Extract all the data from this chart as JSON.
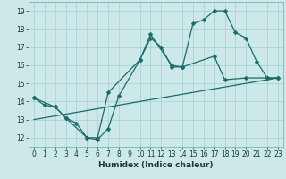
{
  "xlabel": "Humidex (Indice chaleur)",
  "background_color": "#cce8e8",
  "grid_color": "#aad4d4",
  "line_color": "#1a6b6b",
  "xlim": [
    -0.5,
    23.5
  ],
  "ylim": [
    11.5,
    19.5
  ],
  "yticks": [
    12,
    13,
    14,
    15,
    16,
    17,
    18,
    19
  ],
  "xticks": [
    0,
    1,
    2,
    3,
    4,
    5,
    6,
    7,
    8,
    9,
    10,
    11,
    12,
    13,
    14,
    15,
    16,
    17,
    18,
    19,
    20,
    21,
    22,
    23
  ],
  "line1_x": [
    0,
    1,
    2,
    3,
    4,
    5,
    6,
    7,
    8,
    10,
    11,
    12,
    13,
    14,
    15,
    16,
    17,
    18,
    19,
    20,
    21,
    22,
    23
  ],
  "line1_y": [
    14.2,
    13.8,
    13.7,
    13.1,
    12.8,
    12.0,
    11.9,
    12.5,
    14.3,
    16.3,
    17.5,
    17.0,
    15.9,
    15.9,
    18.3,
    18.5,
    19.0,
    19.0,
    17.8,
    17.5,
    16.2,
    15.3,
    15.3
  ],
  "line2_x": [
    0,
    2,
    3,
    5,
    6,
    7,
    10,
    11,
    13,
    14,
    17,
    18,
    20,
    22,
    23
  ],
  "line2_y": [
    14.2,
    13.7,
    13.1,
    12.0,
    12.0,
    14.5,
    16.3,
    17.7,
    16.0,
    15.9,
    16.5,
    15.2,
    15.3,
    15.3,
    15.3
  ],
  "line3_x": [
    0,
    23
  ],
  "line3_y": [
    13.0,
    15.3
  ],
  "marker_size": 2.5,
  "linewidth": 0.9,
  "tick_fontsize": 5.5,
  "xlabel_fontsize": 6.5
}
